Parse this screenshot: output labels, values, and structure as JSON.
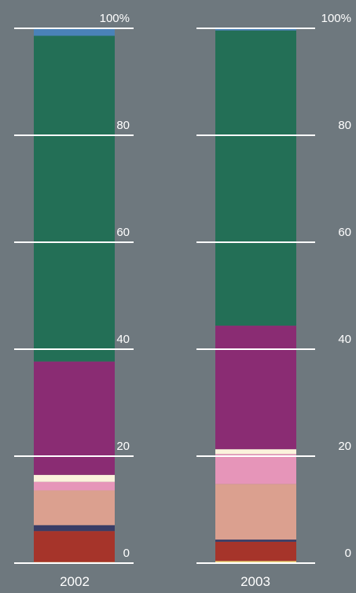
{
  "chart_data": {
    "type": "bar",
    "stacked": true,
    "categories": [
      "2002",
      "2003"
    ],
    "ylim": [
      0,
      100
    ],
    "y_ticks": [
      "0",
      "20",
      "40",
      "60",
      "80",
      "100%"
    ],
    "grid": false,
    "legend": "none",
    "series": [
      {
        "color": "#f3d97e",
        "values": [
          0.2,
          0.4
        ]
      },
      {
        "color": "#a6342a",
        "values": [
          5.8,
          3.6
        ]
      },
      {
        "color": "#393d66",
        "values": [
          1.1,
          0.4
        ]
      },
      {
        "color": "#dba08f",
        "values": [
          6.5,
          10.4
        ]
      },
      {
        "color": "#e695b9",
        "values": [
          1.6,
          5.6
        ]
      },
      {
        "color": "#fbf2dc",
        "values": [
          1.3,
          0.9
        ]
      },
      {
        "color": "#8a2c73",
        "values": [
          21.2,
          23.1
        ]
      },
      {
        "color": "#236f56",
        "values": [
          60.9,
          55.2
        ]
      },
      {
        "color": "#4a82b8",
        "values": [
          1.4,
          0.4
        ]
      }
    ]
  }
}
